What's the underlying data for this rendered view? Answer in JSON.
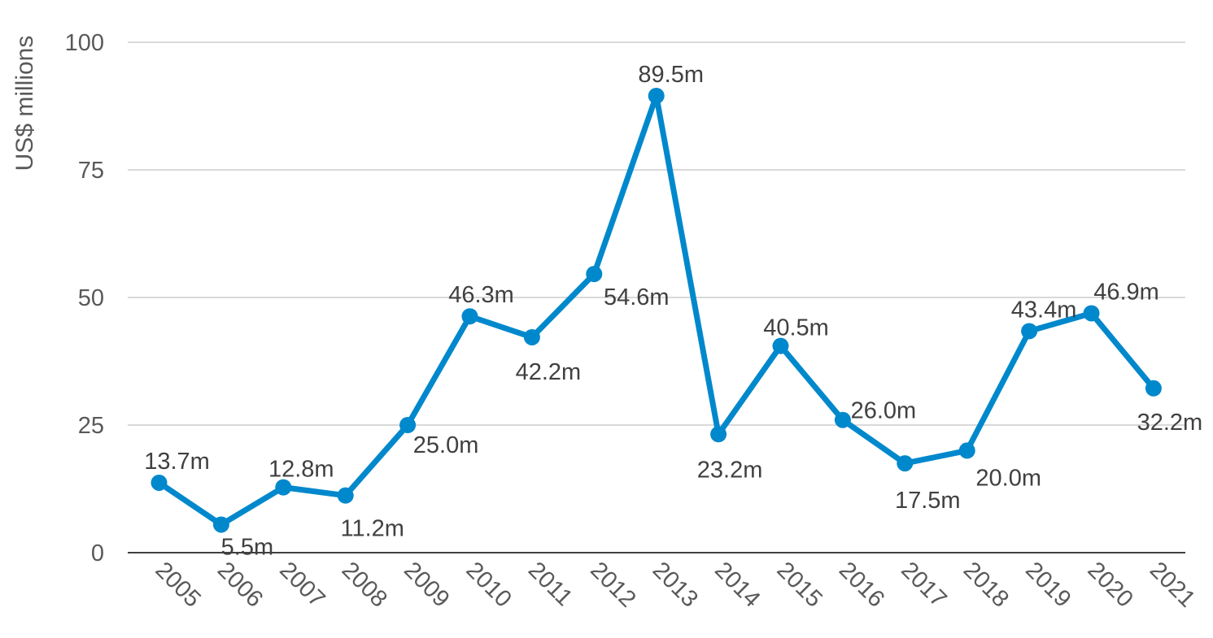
{
  "chart_data": {
    "type": "line",
    "title": "",
    "xlabel": "",
    "ylabel": "US$ millions",
    "ylim": [
      0,
      100
    ],
    "yticks": [
      0,
      25,
      50,
      75,
      100
    ],
    "grid": true,
    "legend": "none",
    "line_color": "#0088CC",
    "categories": [
      "2005",
      "2006",
      "2007",
      "2008",
      "2009",
      "2010",
      "2011",
      "2012",
      "2013",
      "2014",
      "2015",
      "2016",
      "2017",
      "2018",
      "2019",
      "2020",
      "2021"
    ],
    "series": [
      {
        "name": "US$ millions",
        "values": [
          13.7,
          5.5,
          12.8,
          11.2,
          25.0,
          46.3,
          42.2,
          54.6,
          89.5,
          23.2,
          40.5,
          26.0,
          17.5,
          20.0,
          43.4,
          46.9,
          32.2
        ],
        "labels": [
          "13.7m",
          "5.5m",
          "12.8m",
          "11.2m",
          "25.0m",
          "46.3m",
          "42.2m",
          "54.6m",
          "89.5m",
          "23.2m",
          "40.5m",
          "26.0m",
          "17.5m",
          "20.0m",
          "43.4m",
          "46.9m",
          "32.2m"
        ]
      }
    ]
  }
}
